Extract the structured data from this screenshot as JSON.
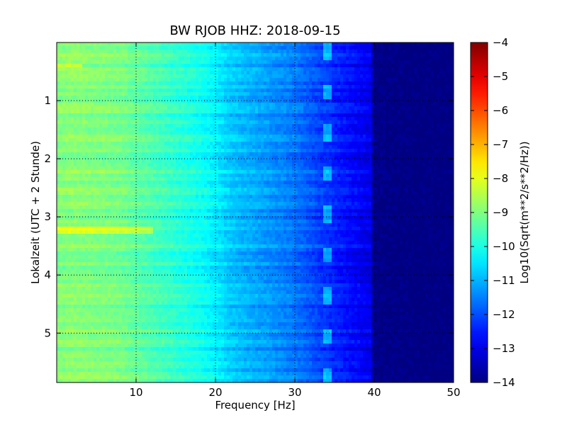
{
  "chart_data": {
    "type": "heatmap",
    "title": "BW RJOB HHZ: 2018-09-15",
    "xlabel": "Frequency [Hz]",
    "ylabel": "Lokalzeit (UTC + 2 Stunde)",
    "xlim": [
      0,
      50
    ],
    "ylim": [
      5.85,
      0
    ],
    "x_ticks": [
      10,
      20,
      30,
      40,
      50
    ],
    "x_tick_labels": [
      "10",
      "20",
      "30",
      "40",
      "50"
    ],
    "y_ticks": [
      1,
      2,
      3,
      4,
      5
    ],
    "y_tick_labels": [
      "1",
      "2",
      "3",
      "4",
      "5"
    ],
    "grid": true,
    "colormap": "jet",
    "colorbar": {
      "label": "Log10(Sqrt(m**2/s**2/Hz))",
      "vmin": -14,
      "vmax": -4,
      "ticks": [
        -14,
        -13,
        -12,
        -11,
        -10,
        -9,
        -8,
        -7,
        -6,
        -5,
        -4
      ],
      "tick_labels": [
        "−14",
        "−13",
        "−12",
        "−11",
        "−10",
        "−9",
        "−8",
        "−7",
        "−6",
        "−5",
        "−4"
      ]
    },
    "spectrum_profile": {
      "frequency_hz": [
        0,
        2,
        5,
        8,
        10,
        12,
        15,
        18,
        20,
        22,
        25,
        28,
        30,
        33,
        35,
        38,
        39.5,
        40,
        45,
        50
      ],
      "level": [
        -9.0,
        -8.9,
        -9.0,
        -9.1,
        -9.3,
        -9.5,
        -9.8,
        -10.1,
        -10.4,
        -10.8,
        -11.1,
        -11.4,
        -11.6,
        -12.1,
        -12.4,
        -12.8,
        -13.0,
        -13.9,
        -14.0,
        -14.0
      ]
    },
    "features": [
      {
        "label": "spectral line",
        "frequency_hz": 34.2
      },
      {
        "label": "high amplitude band",
        "time_h": 3.2
      },
      {
        "label": "high amplitude band",
        "time_h": 0.37
      }
    ]
  }
}
